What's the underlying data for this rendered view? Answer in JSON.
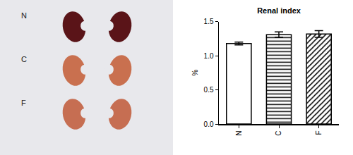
{
  "photo": {
    "labels": [
      "N",
      "C",
      "F"
    ]
  },
  "chart_data": {
    "type": "bar",
    "title": "Renal index",
    "categories": [
      "N",
      "C",
      "F"
    ],
    "values": [
      1.18,
      1.31,
      1.32
    ],
    "errors": [
      0.02,
      0.04,
      0.05
    ],
    "color": "#ffffff",
    "y_label": "%",
    "ylim": [
      0,
      1.5
    ],
    "yticks": [
      {
        "value": 0,
        "label": "0.0"
      },
      {
        "value": 0.5,
        "label": "0.5"
      },
      {
        "value": 1,
        "label": "1.0"
      },
      {
        "value": 1.5,
        "label": "1.5"
      }
    ],
    "grid": false
  }
}
